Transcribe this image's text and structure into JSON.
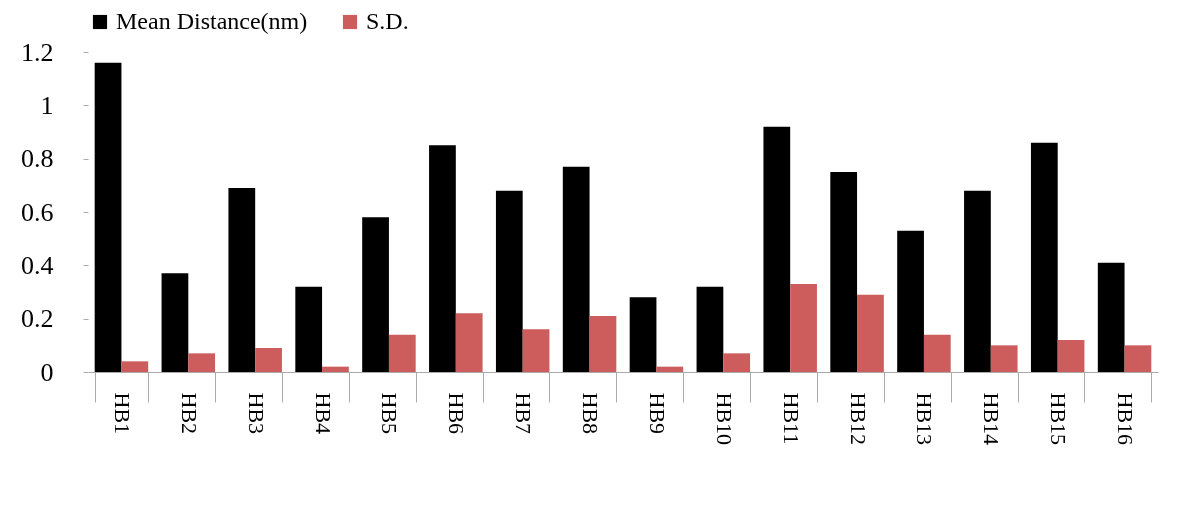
{
  "chart_data": {
    "type": "bar",
    "categories": [
      "HB1",
      "HB2",
      "HB3",
      "HB4",
      "HB5",
      "HB6",
      "HB7",
      "HB8",
      "HB9",
      "HB10",
      "HB11",
      "HB12",
      "HB13",
      "HB14",
      "HB15",
      "HB16"
    ],
    "series": [
      {
        "name": "Mean Distance(nm)",
        "color": "#000000",
        "values": [
          1.16,
          0.37,
          0.69,
          0.32,
          0.58,
          0.85,
          0.68,
          0.77,
          0.28,
          0.32,
          0.92,
          0.75,
          0.53,
          0.68,
          0.86,
          0.41
        ]
      },
      {
        "name": "S.D.",
        "color": "#cd5c5c",
        "values": [
          0.04,
          0.07,
          0.09,
          0.02,
          0.14,
          0.22,
          0.16,
          0.21,
          0.02,
          0.07,
          0.33,
          0.29,
          0.14,
          0.1,
          0.12,
          0.1
        ]
      }
    ],
    "ylim": [
      0,
      1.2
    ],
    "yticks": [
      0,
      0.2,
      0.4,
      0.6,
      0.8,
      1,
      1.2
    ],
    "grid": false,
    "legend": "top"
  }
}
